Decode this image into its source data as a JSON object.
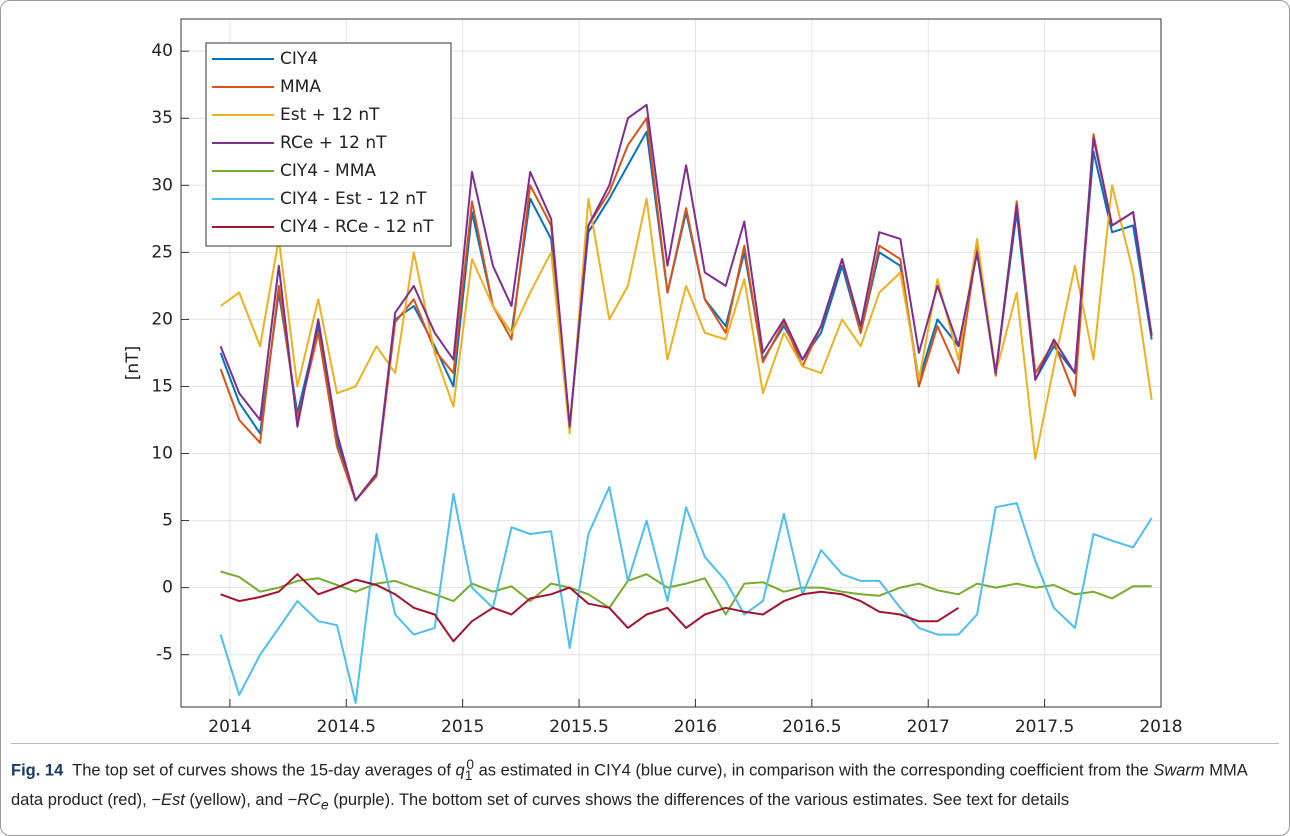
{
  "chart_data": {
    "type": "line",
    "y_label": "[nT]",
    "x": [
      2013.96,
      2014.04,
      2014.13,
      2014.21,
      2014.29,
      2014.38,
      2014.46,
      2014.54,
      2014.63,
      2014.71,
      2014.79,
      2014.88,
      2014.96,
      2015.04,
      2015.13,
      2015.21,
      2015.29,
      2015.38,
      2015.46,
      2015.54,
      2015.63,
      2015.71,
      2015.79,
      2015.88,
      2015.96,
      2016.04,
      2016.13,
      2016.21,
      2016.29,
      2016.38,
      2016.46,
      2016.54,
      2016.63,
      2016.71,
      2016.79,
      2016.88,
      2016.96,
      2017.04,
      2017.13,
      2017.21,
      2017.29,
      2017.38,
      2017.46,
      2017.54,
      2017.63,
      2017.71,
      2017.79,
      2017.88,
      2017.96
    ],
    "series": [
      {
        "name": "CIY4",
        "color": "#0072bd",
        "values": [
          17.5,
          13.8,
          11.5,
          22,
          13,
          19.5,
          11,
          6.5,
          8.5,
          20,
          21,
          18,
          15,
          28,
          21,
          19,
          29,
          26,
          12,
          26.5,
          29,
          31.5,
          34,
          22,
          28,
          21.5,
          19.5,
          25,
          17,
          19.5,
          17,
          19,
          24,
          19,
          25,
          24,
          15.5,
          20,
          18,
          25,
          16,
          28,
          15.5,
          18,
          16,
          32.5,
          26.5,
          27,
          18.5
        ]
      },
      {
        "name": "MMA",
        "color": "#d95319",
        "values": [
          16.3,
          12.5,
          10.8,
          22.5,
          12.5,
          19,
          10.5,
          6.5,
          8.3,
          19.8,
          21.5,
          17.7,
          16,
          28.8,
          21,
          18.5,
          30,
          27,
          12,
          27,
          29.5,
          33,
          35,
          22,
          28.3,
          21.5,
          19,
          25.5,
          16.8,
          19.8,
          16.5,
          19.5,
          24.5,
          19,
          25.5,
          24.5,
          15,
          19.5,
          16,
          25.5,
          15.8,
          28.8,
          16,
          18.3,
          14.3,
          33.8,
          27,
          28,
          18.8
        ]
      },
      {
        "name": "Est + 12 nT",
        "color": "#edb120",
        "values": [
          21,
          22,
          18,
          26,
          15,
          21.5,
          14.5,
          15,
          18,
          16,
          25,
          17.5,
          13.5,
          24.5,
          21,
          19,
          22,
          25,
          11.5,
          29,
          20,
          22.5,
          29,
          17,
          22.5,
          19,
          18.5,
          23,
          14.5,
          19,
          16.5,
          16,
          20,
          18,
          22,
          23.5,
          15.5,
          23,
          17,
          26,
          16,
          22,
          9.6,
          16.5,
          24,
          17,
          30,
          23.5,
          14
        ]
      },
      {
        "name": "RCe + 12 nT",
        "color": "#7e2f8e",
        "values": [
          18,
          14.5,
          12.5,
          24,
          12,
          20,
          11.5,
          6.5,
          8.5,
          20.5,
          22.5,
          19,
          17,
          31,
          24,
          21,
          31,
          27.5,
          12,
          27,
          30,
          35,
          36,
          24,
          31.5,
          23.5,
          22.5,
          27.3,
          17.5,
          20,
          17,
          19.5,
          24.5,
          19.5,
          26.5,
          26,
          17.5,
          22.5,
          18,
          25,
          16,
          28.5,
          15.5,
          18.5,
          16,
          33.5,
          27,
          28,
          18.8
        ]
      },
      {
        "name": "CIY4 - MMA",
        "color": "#77ac30",
        "values": [
          1.2,
          0.8,
          -0.3,
          0,
          0.5,
          0.7,
          0.2,
          -0.3,
          0.3,
          0.5,
          0,
          -0.5,
          -1,
          0.3,
          -0.3,
          0.1,
          -1,
          0.3,
          0,
          -0.5,
          -1.5,
          0.5,
          1,
          0,
          0.3,
          0.7,
          -2,
          0.3,
          0.4,
          -0.3,
          0,
          0,
          -0.3,
          -0.5,
          -0.6,
          0,
          0.3,
          -0.2,
          -0.5,
          0.3,
          0,
          0.3,
          0,
          0.2,
          -0.5,
          -0.3,
          -0.8,
          0.1,
          0.1
        ]
      },
      {
        "name": "CIY4 - Est - 12 nT",
        "color": "#4dbeee",
        "values": [
          -3.5,
          -8,
          -5,
          -3,
          -1,
          -2.5,
          -2.8,
          -8.6,
          4,
          -2,
          -3.5,
          -3,
          7,
          0,
          -1.5,
          4.5,
          4,
          4.2,
          -4.5,
          4,
          7.5,
          0.5,
          5,
          -1,
          6,
          2.3,
          0.5,
          -2,
          -1,
          5.5,
          -0.5,
          2.8,
          1,
          0.5,
          0.5,
          -1.5,
          -3,
          -3.5,
          -3.5,
          -2,
          6,
          6.3,
          2,
          -1.5,
          -3,
          4,
          3.5,
          3,
          5.2
        ]
      },
      {
        "name": "CIY4 - RCe - 12 nT",
        "color": "#a2142f",
        "values": [
          -0.5,
          -1,
          -0.7,
          -0.3,
          1,
          -0.5,
          0,
          0.6,
          0.2,
          -0.5,
          -1.5,
          -2,
          -4,
          -2.5,
          -1.5,
          -2,
          -0.8,
          -0.5,
          0,
          -1.2,
          -1.5,
          -3,
          -2,
          -1.5,
          -3,
          -2,
          -1.5,
          -1.8,
          -2,
          -1,
          -0.5,
          -0.3,
          -0.5,
          -1,
          -1.8,
          -2,
          -2.5,
          -2.5,
          -1.5,
          null,
          null,
          null,
          null,
          null,
          null,
          null,
          null,
          null,
          null
        ]
      }
    ],
    "xlim": [
      2013.79,
      2018
    ],
    "ylim": [
      -8.9,
      42.4
    ],
    "xticks": [
      2014,
      2014.5,
      2015,
      2015.5,
      2016,
      2016.5,
      2017,
      2017.5,
      2018
    ],
    "yticks": [
      -5,
      0,
      5,
      10,
      15,
      20,
      25,
      30,
      35,
      40
    ],
    "grid": true,
    "legend": "upper-left"
  },
  "caption": {
    "label": "Fig. 14",
    "parts": [
      "The top set of curves shows the 15-day averages of ",
      "q",
      "1",
      "0",
      " as estimated in CIY4 (blue curve), in comparison with the corresponding coefficient from the ",
      "Swarm",
      " MMA data product (red), −",
      "Est",
      " (yellow), and −",
      "RC",
      "e",
      " (purple). The bottom set of curves shows the differences of the various estimates. See text for details"
    ]
  }
}
